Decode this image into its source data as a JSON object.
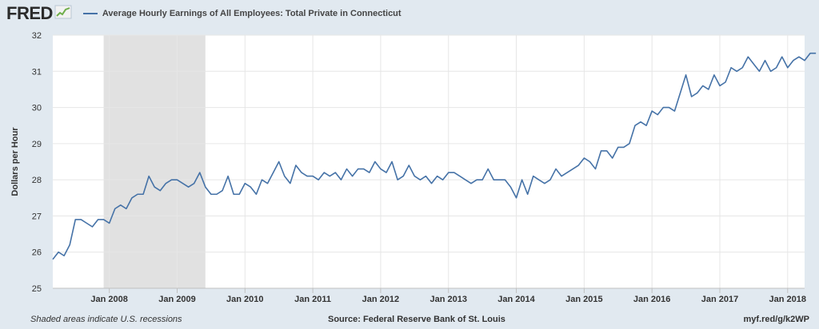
{
  "header": {
    "logo_text": "FRED",
    "logo_icon": "trend-line-icon",
    "legend_label": "Average Hourly Earnings of All Employees: Total Private in Connecticut"
  },
  "footer": {
    "note": "Shaded areas indicate U.S. recessions",
    "source": "Source: Federal Reserve Bank of St. Louis",
    "link": "myf.red/g/k2WP"
  },
  "colors": {
    "line": "#4572a7",
    "recession": "#e1e1e1",
    "background": "#e1e9f0",
    "plot": "#ffffff"
  },
  "chart_data": {
    "type": "line",
    "title": "",
    "xlabel": "",
    "ylabel": "Dollars per Hour",
    "ylim": [
      25,
      32
    ],
    "yticks": [
      25,
      26,
      27,
      28,
      29,
      30,
      31,
      32
    ],
    "xlim": [
      "2007-03",
      "2018-04"
    ],
    "xticks": [
      {
        "date": "2008-01",
        "label": "Jan 2008"
      },
      {
        "date": "2009-01",
        "label": "Jan 2009"
      },
      {
        "date": "2010-01",
        "label": "Jan 2010"
      },
      {
        "date": "2011-01",
        "label": "Jan 2011"
      },
      {
        "date": "2012-01",
        "label": "Jan 2012"
      },
      {
        "date": "2013-01",
        "label": "Jan 2013"
      },
      {
        "date": "2014-01",
        "label": "Jan 2014"
      },
      {
        "date": "2015-01",
        "label": "Jan 2015"
      },
      {
        "date": "2016-01",
        "label": "Jan 2016"
      },
      {
        "date": "2017-01",
        "label": "Jan 2017"
      },
      {
        "date": "2018-01",
        "label": "Jan 2018"
      }
    ],
    "grid": true,
    "recessions": [
      {
        "start": "2007-12",
        "end": "2009-06"
      }
    ],
    "series": [
      {
        "name": "Average Hourly Earnings of All Employees: Total Private in Connecticut",
        "start": "2007-03",
        "frequency": "monthly",
        "values": [
          25.8,
          26.0,
          25.9,
          26.2,
          26.9,
          26.9,
          26.8,
          26.7,
          26.9,
          26.9,
          26.8,
          27.2,
          27.3,
          27.2,
          27.5,
          27.6,
          27.6,
          28.1,
          27.8,
          27.7,
          27.9,
          28.0,
          28.0,
          27.9,
          27.8,
          27.9,
          28.2,
          27.8,
          27.6,
          27.6,
          27.7,
          28.1,
          27.6,
          27.6,
          27.9,
          27.8,
          27.6,
          28.0,
          27.9,
          28.2,
          28.5,
          28.1,
          27.9,
          28.4,
          28.2,
          28.1,
          28.1,
          28.0,
          28.2,
          28.1,
          28.2,
          28.0,
          28.3,
          28.1,
          28.3,
          28.3,
          28.2,
          28.5,
          28.3,
          28.2,
          28.5,
          28.0,
          28.1,
          28.4,
          28.1,
          28.0,
          28.1,
          27.9,
          28.1,
          28.0,
          28.2,
          28.2,
          28.1,
          28.0,
          27.9,
          28.0,
          28.0,
          28.3,
          28.0,
          28.0,
          28.0,
          27.8,
          27.5,
          28.0,
          27.6,
          28.1,
          28.0,
          27.9,
          28.0,
          28.3,
          28.1,
          28.2,
          28.3,
          28.4,
          28.6,
          28.5,
          28.3,
          28.8,
          28.8,
          28.6,
          28.9,
          28.9,
          29.0,
          29.5,
          29.6,
          29.5,
          29.9,
          29.8,
          30.0,
          30.0,
          29.9,
          30.4,
          30.9,
          30.3,
          30.4,
          30.6,
          30.5,
          30.9,
          30.6,
          30.7,
          31.1,
          31.0,
          31.1,
          31.4,
          31.2,
          31.0,
          31.3,
          31.0,
          31.1,
          31.4,
          31.1,
          31.3,
          31.4,
          31.3,
          31.5,
          31.5
        ]
      }
    ]
  }
}
